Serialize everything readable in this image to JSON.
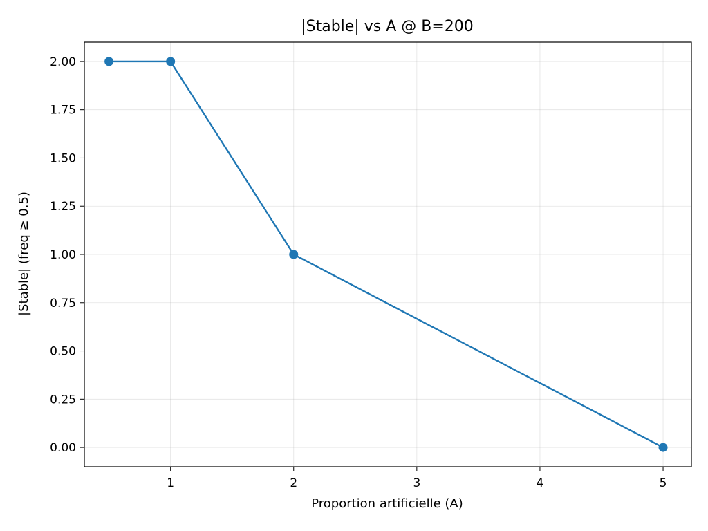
{
  "chart_data": {
    "type": "line",
    "title": "|Stable| vs A @ B=200",
    "xlabel": "Proportion artificielle (A)",
    "ylabel": "|Stable| (freq ≥ 0.5)",
    "xlim": [
      0.3,
      5.23
    ],
    "ylim": [
      -0.1,
      2.1
    ],
    "xticks": [
      1,
      2,
      3,
      4,
      5
    ],
    "yticks": [
      0.0,
      0.25,
      0.5,
      0.75,
      1.0,
      1.25,
      1.5,
      1.75,
      2.0
    ],
    "xtick_labels": [
      "1",
      "2",
      "3",
      "4",
      "5"
    ],
    "ytick_labels": [
      "0.00",
      "0.25",
      "0.50",
      "0.75",
      "1.00",
      "1.25",
      "1.50",
      "1.75",
      "2.00"
    ],
    "grid": true,
    "marker": "circle",
    "color": "#1f77b4",
    "series": [
      {
        "x": [
          0.5,
          1,
          2,
          5
        ],
        "y": [
          2.0,
          2.0,
          1.0,
          0.0
        ]
      }
    ]
  }
}
